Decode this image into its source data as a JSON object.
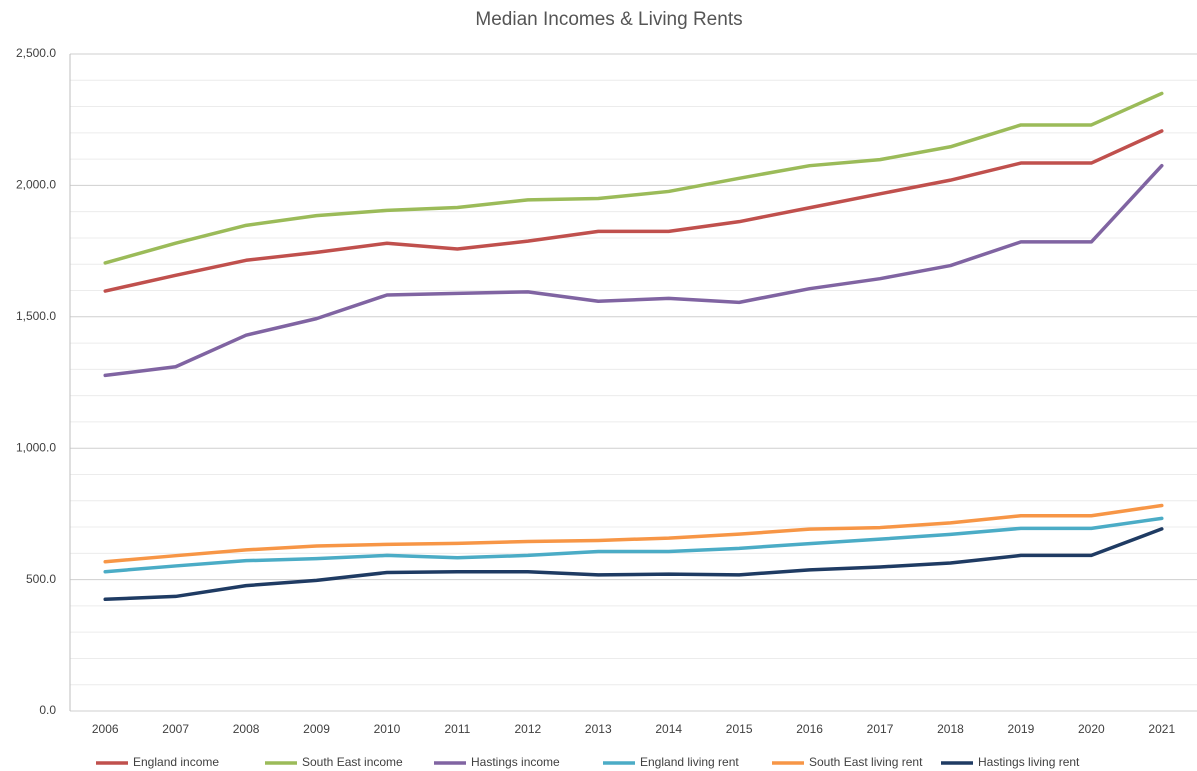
{
  "chart_data": {
    "type": "line",
    "title": "Median Incomes & Living Rents",
    "categories": [
      "2006",
      "2007",
      "2008",
      "2009",
      "2010",
      "2011",
      "2012",
      "2013",
      "2014",
      "2015",
      "2016",
      "2017",
      "2018",
      "2019",
      "2020",
      "2021"
    ],
    "series": [
      {
        "name": "England income",
        "color": "#c0504d",
        "values": [
          1598,
          1658,
          1715,
          1745,
          1780,
          1758,
          1788,
          1825,
          1825,
          1862,
          1915,
          1968,
          2020,
          2085,
          2085,
          2207
        ]
      },
      {
        "name": "South East income",
        "color": "#9bbb59",
        "values": [
          1705,
          1780,
          1848,
          1885,
          1905,
          1916,
          1945,
          1950,
          1977,
          2027,
          2075,
          2098,
          2147,
          2230,
          2230,
          2350
        ]
      },
      {
        "name": "Hastings income",
        "color": "#8064a2",
        "values": [
          1277,
          1310,
          1430,
          1493,
          1583,
          1589,
          1595,
          1559,
          1570,
          1555,
          1607,
          1645,
          1695,
          1785,
          1785,
          2075
        ]
      },
      {
        "name": "England living rent",
        "color": "#4bacc6",
        "values": [
          530,
          552,
          572,
          580,
          592,
          583,
          592,
          607,
          607,
          619,
          637,
          654,
          672,
          695,
          695,
          733
        ]
      },
      {
        "name": "South East living rent",
        "color": "#f79646",
        "values": [
          568,
          591,
          613,
          628,
          634,
          638,
          645,
          649,
          658,
          673,
          692,
          698,
          716,
          743,
          743,
          782
        ]
      },
      {
        "name": "Hastings living rent",
        "color": "#1f3b63",
        "values": [
          425,
          436,
          477,
          497,
          527,
          530,
          530,
          518,
          521,
          518,
          537,
          548,
          563,
          592,
          592,
          693
        ]
      }
    ],
    "ylim": [
      0,
      2500
    ],
    "yticks": [
      {
        "value": 0,
        "label": "0.0"
      },
      {
        "value": 500,
        "label": "500.0"
      },
      {
        "value": 1000,
        "label": "1,000.0"
      },
      {
        "value": 1500,
        "label": "1,500.0"
      },
      {
        "value": 2000,
        "label": "2,000.0"
      },
      {
        "value": 2500,
        "label": "2,500.0"
      }
    ],
    "yticks_minor": [
      100,
      200,
      300,
      400,
      600,
      700,
      800,
      900,
      1100,
      1200,
      1300,
      1400,
      1600,
      1700,
      1800,
      1900,
      2100,
      2200,
      2300,
      2400
    ],
    "grid": true,
    "legend": "bottom"
  }
}
